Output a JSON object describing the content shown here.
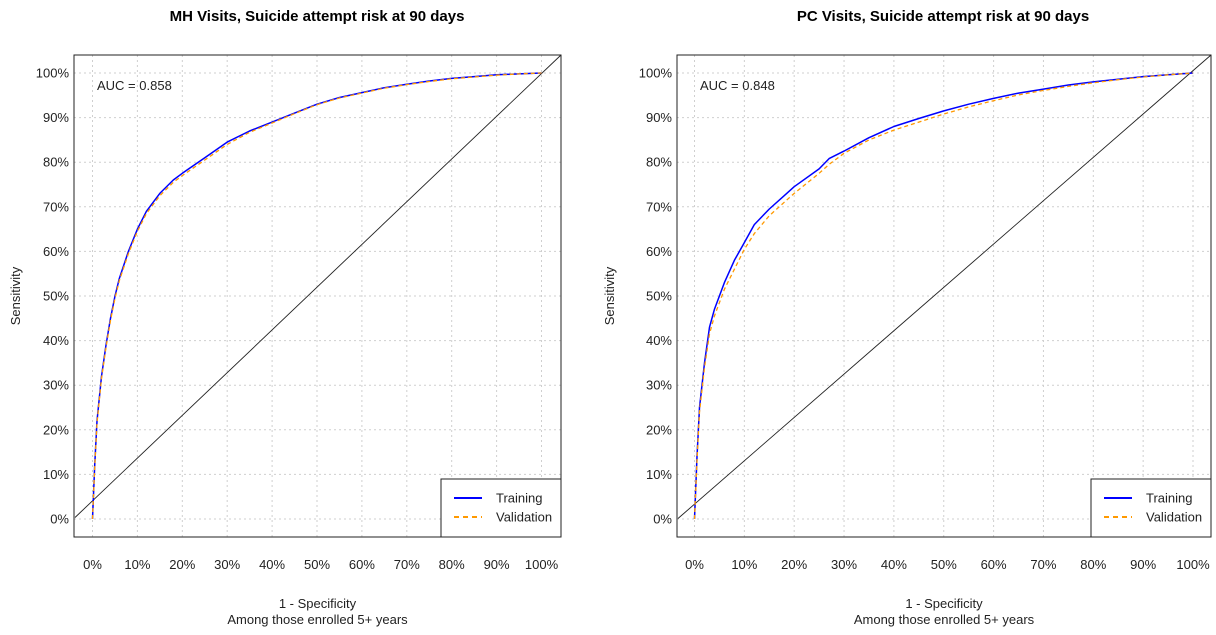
{
  "chart_data": [
    {
      "type": "line",
      "title": "MH Visits, Suicide attempt risk at 90 days",
      "xlabel": "1 - Specificity",
      "xlabel_sub": "Among those enrolled 5+ years",
      "ylabel": "Sensitivity",
      "annotation": "AUC = 0.858",
      "xlim": [
        0,
        100
      ],
      "ylim": [
        0,
        100
      ],
      "x_ticks": [
        "0%",
        "10%",
        "20%",
        "30%",
        "40%",
        "50%",
        "60%",
        "70%",
        "80%",
        "90%",
        "100%"
      ],
      "y_ticks": [
        "0%",
        "10%",
        "20%",
        "30%",
        "40%",
        "50%",
        "60%",
        "70%",
        "80%",
        "90%",
        "100%"
      ],
      "grid": true,
      "legend_position": "bottom-right",
      "reference_line": {
        "x": [
          0,
          100
        ],
        "y": [
          0,
          100
        ]
      },
      "series": [
        {
          "name": "Training",
          "color": "#0000ff",
          "style": "solid",
          "x": [
            0,
            0.5,
            1,
            2,
            3,
            4,
            5,
            6,
            8,
            10,
            12,
            15,
            18,
            20,
            25,
            30,
            35,
            40,
            45,
            50,
            55,
            60,
            65,
            70,
            75,
            80,
            85,
            90,
            95,
            100
          ],
          "y": [
            0,
            12,
            22,
            32,
            39,
            45,
            50,
            54,
            60,
            65,
            69,
            73,
            76,
            77.5,
            81,
            84.5,
            87,
            89,
            91,
            93,
            94.5,
            95.6,
            96.7,
            97.5,
            98.2,
            98.8,
            99.2,
            99.6,
            99.8,
            100
          ]
        },
        {
          "name": "Validation",
          "color": "#ff9900",
          "style": "dashed",
          "x": [
            0,
            0.5,
            1,
            2,
            3,
            4,
            5,
            6,
            8,
            10,
            12,
            15,
            18,
            20,
            25,
            30,
            35,
            40,
            45,
            50,
            55,
            60,
            65,
            70,
            75,
            80,
            85,
            90,
            95,
            100
          ],
          "y": [
            0,
            11.5,
            21.5,
            31.5,
            38.5,
            44.5,
            49.5,
            53.5,
            59.5,
            64.5,
            68.5,
            72.5,
            75.5,
            77,
            80.5,
            84,
            86.7,
            88.8,
            90.9,
            92.9,
            94.4,
            95.5,
            96.6,
            97.4,
            98.1,
            98.7,
            99.1,
            99.5,
            99.8,
            100
          ]
        }
      ]
    },
    {
      "type": "line",
      "title": "PC Visits, Suicide attempt risk at 90 days",
      "xlabel": "1 - Specificity",
      "xlabel_sub": "Among those enrolled 5+ years",
      "ylabel": "Sensitivity",
      "annotation": "AUC = 0.848",
      "xlim": [
        0,
        100
      ],
      "ylim": [
        0,
        100
      ],
      "x_ticks": [
        "0%",
        "10%",
        "20%",
        "30%",
        "40%",
        "50%",
        "60%",
        "70%",
        "80%",
        "90%",
        "100%"
      ],
      "y_ticks": [
        "0%",
        "10%",
        "20%",
        "30%",
        "40%",
        "50%",
        "60%",
        "70%",
        "80%",
        "90%",
        "100%"
      ],
      "grid": true,
      "legend_position": "bottom-right",
      "reference_line": {
        "x": [
          0,
          100
        ],
        "y": [
          0,
          100
        ]
      },
      "series": [
        {
          "name": "Training",
          "color": "#0000ff",
          "style": "solid",
          "x": [
            0,
            0.5,
            1,
            2,
            3,
            4,
            5,
            6,
            8,
            10,
            12,
            15,
            18,
            20,
            25,
            27,
            30,
            35,
            40,
            45,
            50,
            55,
            60,
            65,
            70,
            75,
            80,
            85,
            90,
            95,
            100
          ],
          "y": [
            0,
            14,
            25,
            35,
            43,
            47,
            50,
            53,
            58,
            62,
            66,
            69.5,
            72.5,
            74.5,
            78.5,
            80.8,
            82.5,
            85.5,
            88,
            89.8,
            91.5,
            93,
            94.3,
            95.5,
            96.4,
            97.3,
            98,
            98.6,
            99.2,
            99.6,
            100
          ]
        },
        {
          "name": "Validation",
          "color": "#ff9900",
          "style": "dashed",
          "x": [
            0,
            0.5,
            1,
            2,
            3,
            4,
            5,
            6,
            8,
            10,
            12,
            15,
            18,
            20,
            25,
            27,
            30,
            35,
            40,
            45,
            50,
            55,
            60,
            65,
            70,
            75,
            80,
            85,
            90,
            95,
            100
          ],
          "y": [
            0,
            13,
            24,
            34,
            41.5,
            45.5,
            48.5,
            51.5,
            56,
            60.5,
            64,
            68,
            71,
            73,
            77.5,
            79.5,
            82,
            85,
            87.2,
            89,
            90.8,
            92.4,
            93.8,
            95.1,
            96.1,
            97,
            97.8,
            98.5,
            99.1,
            99.6,
            100
          ]
        }
      ]
    }
  ]
}
